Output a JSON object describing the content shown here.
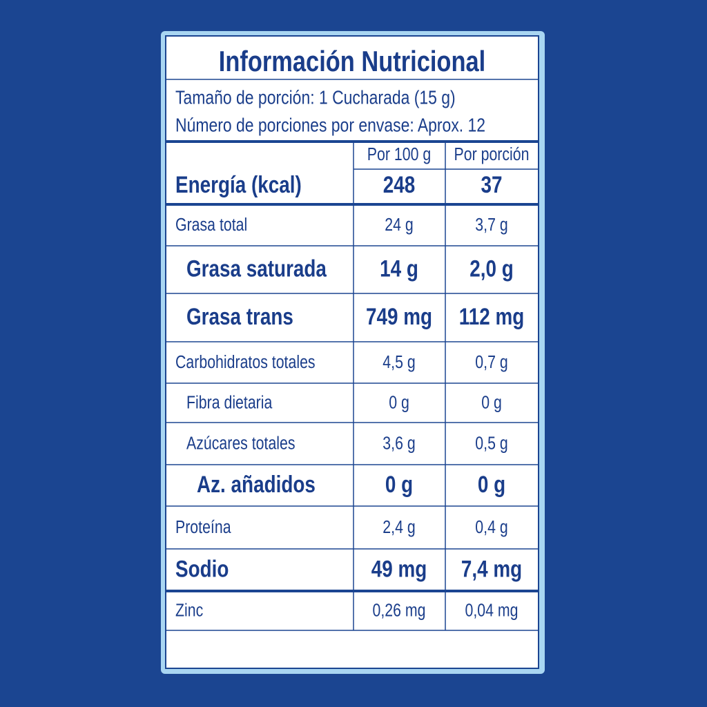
{
  "title": "Información Nutricional",
  "serving_size": "Tamaño de porción: 1 Cucharada (15 g)",
  "servings_per_container": "Número de porciones por envase: Aprox. 12",
  "header": {
    "per_100g": "Por 100 g",
    "per_portion": "Por porción"
  },
  "energy": {
    "label": "Energía (kcal)",
    "per_100g": "248",
    "per_portion": "37"
  },
  "rows": [
    [
      "Grasa total",
      "24 g",
      "3,7 g"
    ],
    [
      "Grasa saturada",
      "14 g",
      "2,0 g"
    ],
    [
      "Grasa trans",
      "749 mg",
      "112 mg"
    ],
    [
      "Carbohidratos totales",
      "4,5 g",
      "0,7 g"
    ],
    [
      "Fibra dietaria",
      "0 g",
      "0 g"
    ],
    [
      "Azúcares totales",
      "3,6 g",
      "0,5 g"
    ],
    [
      "Az. añadidos",
      "0 g",
      "0 g"
    ],
    [
      "Proteína",
      "2,4 g",
      "0,4 g"
    ],
    [
      "Sodio",
      "49 mg",
      "7,4 mg"
    ],
    [
      "Zinc",
      "0,26 mg",
      "0,04 mg"
    ]
  ]
}
